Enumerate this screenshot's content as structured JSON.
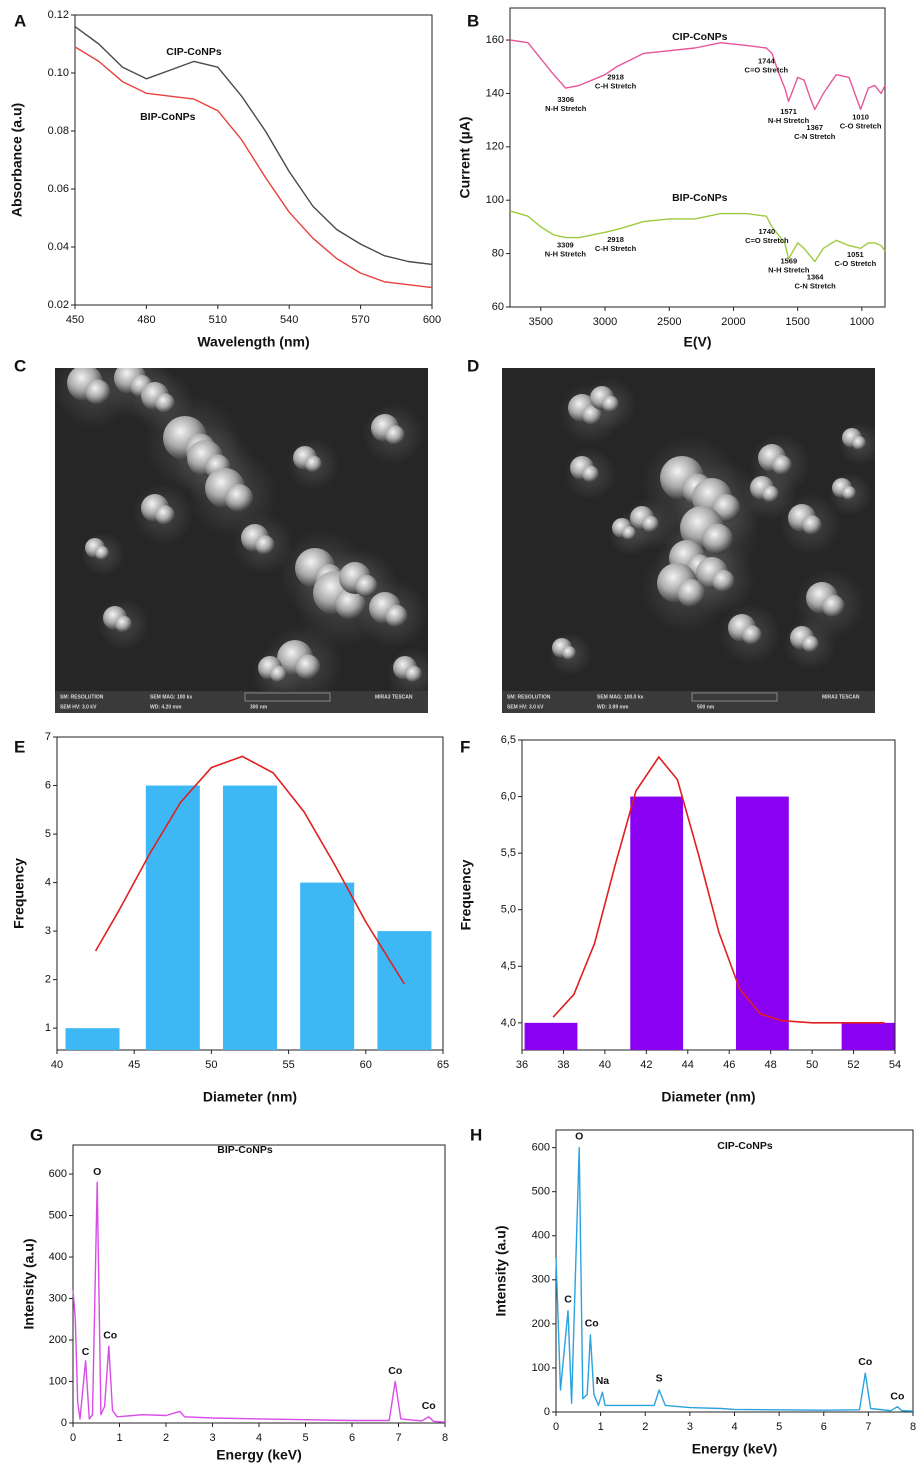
{
  "chart_data": [
    {
      "panel": "A",
      "type": "line",
      "xlabel": "Wavelength (nm)",
      "ylabel": "Absorbance (a.u)",
      "x": [
        450,
        460,
        470,
        480,
        490,
        500,
        510,
        520,
        530,
        540,
        550,
        560,
        570,
        580,
        590,
        600
      ],
      "xlim": [
        450,
        600
      ],
      "xticks": [
        450,
        480,
        510,
        540,
        570,
        600
      ],
      "ylim": [
        0.02,
        0.12
      ],
      "yticks": [
        0.02,
        0.04,
        0.06,
        0.08,
        {
          "value": 0.1,
          "label": "0.10"
        },
        0.12
      ],
      "series": [
        {
          "name": "CIP-CoNPs",
          "color": "#4a4a4a",
          "label_x": 500,
          "label_y": 0.1072,
          "values": [
            0.116,
            0.11,
            0.102,
            0.098,
            0.101,
            0.104,
            0.102,
            0.092,
            0.08,
            0.066,
            0.054,
            0.046,
            0.041,
            0.037,
            0.035,
            0.034
          ]
        },
        {
          "name": "BIP-CoNPs",
          "color": "#e8413c",
          "label_x": 489,
          "label_y": 0.0847,
          "values": [
            0.109,
            0.104,
            0.097,
            0.093,
            0.092,
            0.091,
            0.087,
            0.077,
            0.064,
            0.052,
            0.043,
            0.036,
            0.031,
            0.028,
            0.027,
            0.026
          ]
        }
      ]
    },
    {
      "panel": "B",
      "type": "line",
      "xlabel": "E(V)",
      "ylabel": "Current (µA)",
      "x": [
        3740,
        3600,
        3500,
        3400,
        3306,
        3200,
        3000,
        2910,
        2700,
        2500,
        2300,
        2100,
        1900,
        1744,
        1700,
        1650,
        1600,
        1571,
        1500,
        1450,
        1400,
        1367,
        1300,
        1200,
        1100,
        1010,
        950,
        900,
        850,
        820
      ],
      "xlim": [
        3740,
        820
      ],
      "xticks": [
        3500,
        3000,
        2500,
        2000,
        1500,
        1000
      ],
      "ylim": [
        60,
        172
      ],
      "yticks": [
        60,
        80,
        100,
        120,
        140,
        160
      ],
      "series": [
        {
          "name": "CIP-CoNPs",
          "color": "#e8559a",
          "label_x": 2262,
          "label_y": 161,
          "values": [
            160,
            159,
            153,
            147,
            142,
            143,
            147,
            150,
            155,
            156,
            157,
            159,
            158,
            157,
            155,
            148,
            142,
            137,
            146,
            145,
            138,
            134,
            140,
            147,
            146,
            134,
            142,
            143,
            140,
            143
          ]
        },
        {
          "name": "BIP-CoNPs",
          "color": "#9ccc3c",
          "label_x": 2262,
          "label_y": 100.8,
          "values": [
            96,
            94,
            90,
            87,
            86,
            86,
            88,
            89,
            92,
            93,
            93,
            95,
            95,
            94,
            90,
            87,
            84,
            78,
            84,
            82,
            79,
            77,
            82,
            85,
            83,
            82,
            84,
            84,
            83,
            81
          ]
        }
      ],
      "annotations": [
        {
          "wavenumber": 3306,
          "y": 137.5,
          "text": "N-H Stretch"
        },
        {
          "wavenumber": 2918,
          "y": 146,
          "text": "C-H Stretch"
        },
        {
          "wavenumber": 1744,
          "y": 152,
          "text": "C=O Stretch"
        },
        {
          "wavenumber": 1571,
          "y": 133,
          "text": "N-H Stretch"
        },
        {
          "wavenumber": 1367,
          "y": 127,
          "text": "C-N Stretch"
        },
        {
          "wavenumber": 1010,
          "y": 131,
          "text": "C-O Stretch"
        },
        {
          "wavenumber": 3309,
          "y": 83,
          "text": "N-H Stretch"
        },
        {
          "wavenumber": 2918,
          "y": 85,
          "text": "C-H Stretch"
        },
        {
          "wavenumber": 1740,
          "y": 88,
          "text": "C=O Stretch"
        },
        {
          "wavenumber": 1569,
          "y": 77,
          "text": "N-H Stretch"
        },
        {
          "wavenumber": 1364,
          "y": 71,
          "text": "C-N Stretch"
        },
        {
          "wavenumber": 1051,
          "y": 79.5,
          "text": "C-O Stretch"
        }
      ]
    },
    {
      "panel": "E",
      "type": "bar",
      "xlabel": "Diameter (nm)",
      "ylabel": "Frequency",
      "x": [
        42.3,
        47.5,
        52.5,
        57.5,
        62.5
      ],
      "values": [
        1,
        6,
        6,
        4,
        3
      ],
      "color": "#3db8f5",
      "xlim": [
        40,
        65
      ],
      "xticks": [
        40,
        45,
        50,
        55,
        60,
        65
      ],
      "ylim": [
        0.55,
        7
      ],
      "yticks": [
        1,
        2,
        3,
        4,
        5,
        6,
        7
      ],
      "fit": {
        "color": "#e02020",
        "x": [
          42.5,
          44,
          46,
          48,
          50,
          52,
          54,
          56,
          58,
          60,
          62.5
        ],
        "values": [
          2.59,
          3.42,
          4.59,
          5.65,
          6.37,
          6.6,
          6.26,
          5.46,
          4.36,
          3.19,
          1.91
        ]
      }
    },
    {
      "panel": "F",
      "type": "bar",
      "xlabel": "Diameter (nm)",
      "ylabel": "Frequency",
      "x": [
        37.4,
        42.5,
        47.6,
        52.7
      ],
      "values": [
        4,
        6,
        6,
        4
      ],
      "color": "#8a00f0",
      "xlim": [
        36,
        54
      ],
      "xticks": [
        36,
        38,
        40,
        42,
        44,
        46,
        48,
        50,
        52,
        54
      ],
      "ylim": [
        3.76,
        6.5
      ],
      "yticks": [
        {
          "value": 4,
          "label": "4,0"
        },
        {
          "value": 4.5,
          "label": "4,5"
        },
        {
          "value": 5,
          "label": "5,0"
        },
        {
          "value": 5.5,
          "label": "5,5"
        },
        {
          "value": 6,
          "label": "6,0"
        },
        {
          "value": 6.5,
          "label": "6,5"
        }
      ],
      "fit": {
        "color": "#e02020",
        "x": [
          37.5,
          38.5,
          39.5,
          40.5,
          41.5,
          42.6,
          43.5,
          44.5,
          45.5,
          46.5,
          47.5,
          48.5,
          50,
          53.5
        ],
        "values": [
          4.05,
          4.25,
          4.7,
          5.4,
          6.05,
          6.35,
          6.15,
          5.5,
          4.8,
          4.3,
          4.08,
          4.02,
          4,
          4
        ]
      }
    },
    {
      "panel": "G",
      "type": "line",
      "title": "BIP-CoNPs",
      "xlabel": "Energy (keV)",
      "ylabel": "Intensity (a.u)",
      "x": [
        0,
        0.05,
        0.1,
        0.15,
        0.27,
        0.35,
        0.42,
        0.52,
        0.6,
        0.68,
        0.77,
        0.85,
        0.95,
        1.5,
        2,
        2.3,
        2.4,
        3,
        4,
        5,
        6,
        6.8,
        6.93,
        7.05,
        7.5,
        7.65,
        7.75,
        8
      ],
      "xlim": [
        0,
        8
      ],
      "xticks": [
        0,
        1,
        2,
        3,
        4,
        5,
        6,
        7,
        8
      ],
      "ylim": [
        0,
        670
      ],
      "yticks": [
        0,
        100,
        200,
        300,
        400,
        500,
        600
      ],
      "series": [
        {
          "color": "#d84ce8",
          "values": [
            320,
            250,
            50,
            10,
            150,
            10,
            20,
            580,
            20,
            40,
            185,
            30,
            15,
            20,
            18,
            28,
            15,
            12,
            10,
            8,
            6,
            6,
            100,
            10,
            5,
            15,
            4,
            2
          ]
        }
      ],
      "annotations": [
        {
          "text": "O",
          "x": 0.52,
          "y": 605
        },
        {
          "text": "C",
          "x": 0.27,
          "y": 170
        },
        {
          "text": "Co",
          "x": 0.8,
          "y": 210
        },
        {
          "text": "Co",
          "x": 6.93,
          "y": 125
        },
        {
          "text": "Co",
          "x": 7.65,
          "y": 40
        }
      ]
    },
    {
      "panel": "H",
      "type": "line",
      "title": "CIP-CoNPs",
      "xlabel": "Energy (keV)",
      "ylabel": "Intensity (a.u)",
      "x": [
        0,
        0.1,
        0.27,
        0.35,
        0.52,
        0.6,
        0.7,
        0.77,
        0.85,
        0.95,
        1.04,
        1.1,
        1.5,
        2.2,
        2.31,
        2.45,
        3,
        3.7,
        4,
        5,
        6,
        6.8,
        6.93,
        7.05,
        7.5,
        7.65,
        7.75,
        8
      ],
      "xlim": [
        0,
        8
      ],
      "xticks": [
        0,
        1,
        2,
        3,
        4,
        5,
        6,
        7,
        8
      ],
      "ylim": [
        0,
        640
      ],
      "yticks": [
        0,
        100,
        200,
        300,
        400,
        500,
        600
      ],
      "series": [
        {
          "color": "#2aa3e0",
          "values": [
            350,
            50,
            230,
            20,
            600,
            30,
            40,
            175,
            40,
            15,
            45,
            15,
            15,
            15,
            50,
            15,
            10,
            8,
            6,
            5,
            4,
            5,
            88,
            8,
            3,
            12,
            3,
            2
          ]
        }
      ],
      "annotations": [
        {
          "text": "O",
          "x": 0.52,
          "y": 625
        },
        {
          "text": "C",
          "x": 0.27,
          "y": 255
        },
        {
          "text": "Co",
          "x": 0.8,
          "y": 200
        },
        {
          "text": "Na",
          "x": 1.04,
          "y": 70
        },
        {
          "text": "S",
          "x": 2.31,
          "y": 75
        },
        {
          "text": "Co",
          "x": 6.93,
          "y": 113
        },
        {
          "text": "Co",
          "x": 7.65,
          "y": 35
        }
      ]
    }
  ],
  "images": [
    {
      "panel": "C",
      "info": [
        "SM: RESOLUTION",
        "SEM MAG: 100 kx",
        "MIRA3 TESCAN",
        "SEM HV: 3.0 kV",
        "WD: 4.20 mm",
        "300 nm"
      ]
    },
    {
      "panel": "D",
      "info": [
        "SM: RESOLUTION",
        "SEM MAG: 100.0 kx",
        "MIRA3 TESCAN",
        "SEM HV: 3.0 kV",
        "WD: 3.89 mm",
        "500 nm"
      ]
    }
  ]
}
